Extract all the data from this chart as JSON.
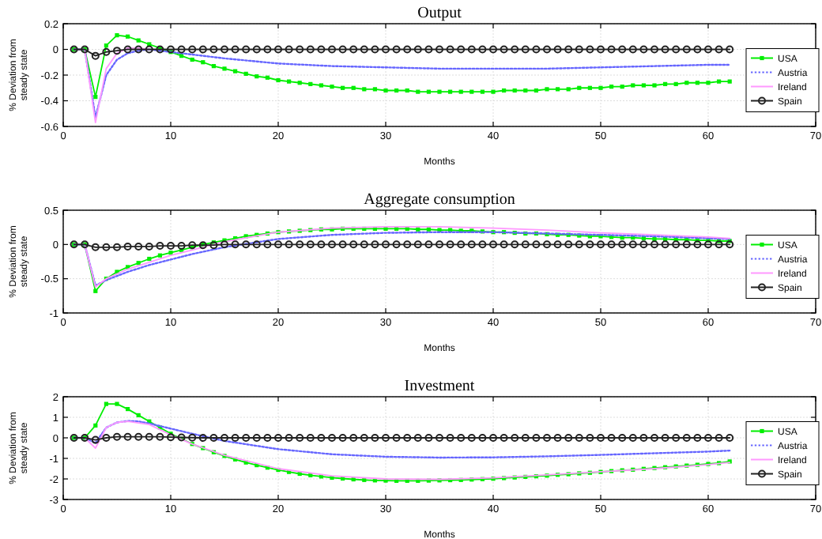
{
  "chart_data": [
    {
      "type": "line",
      "title": "Output",
      "xlabel": "Months",
      "ylabel": "% Deviation from steady state",
      "xlim": [
        0,
        70
      ],
      "xticks": [
        0,
        10,
        20,
        30,
        40,
        50,
        60,
        70
      ],
      "ylim": [
        -0.6,
        0.2
      ],
      "yticks": [
        -0.6,
        -0.4,
        -0.2,
        0,
        0.2
      ],
      "grid": true,
      "legend": "right",
      "series": [
        {
          "name": "USA",
          "color": "#00ee00",
          "marker": "square",
          "line_style": "solid",
          "x": [
            1,
            2,
            3,
            4,
            5,
            6,
            7,
            8,
            9,
            10,
            11,
            12,
            13,
            14,
            15,
            16,
            17,
            18,
            19,
            20,
            21,
            22,
            23,
            24,
            25,
            26,
            27,
            28,
            29,
            30,
            31,
            32,
            33,
            34,
            35,
            36,
            37,
            38,
            39,
            40,
            41,
            42,
            43,
            44,
            45,
            46,
            47,
            48,
            49,
            50,
            51,
            52,
            53,
            54,
            55,
            56,
            57,
            58,
            59,
            60,
            61,
            62
          ],
          "values": [
            0,
            0,
            -0.37,
            0.03,
            0.11,
            0.1,
            0.07,
            0.04,
            0.01,
            -0.02,
            -0.05,
            -0.08,
            -0.1,
            -0.13,
            -0.15,
            -0.17,
            -0.19,
            -0.21,
            -0.22,
            -0.24,
            -0.25,
            -0.26,
            -0.27,
            -0.28,
            -0.29,
            -0.3,
            -0.3,
            -0.31,
            -0.31,
            -0.32,
            -0.32,
            -0.32,
            -0.33,
            -0.33,
            -0.33,
            -0.33,
            -0.33,
            -0.33,
            -0.33,
            -0.33,
            -0.32,
            -0.32,
            -0.32,
            -0.32,
            -0.31,
            -0.31,
            -0.31,
            -0.3,
            -0.3,
            -0.3,
            -0.29,
            -0.29,
            -0.28,
            -0.28,
            -0.28,
            -0.27,
            -0.27,
            -0.26,
            -0.26,
            -0.26,
            -0.25,
            -0.25
          ]
        },
        {
          "name": "Austria",
          "color": "#6666ff",
          "marker": "none",
          "line_style": "dotted",
          "x": [
            1,
            2,
            3,
            4,
            5,
            6,
            7,
            8,
            10,
            15,
            20,
            25,
            30,
            35,
            40,
            45,
            50,
            55,
            60,
            62
          ],
          "values": [
            0,
            0,
            -0.53,
            -0.2,
            -0.08,
            -0.03,
            -0.01,
            0,
            -0.02,
            -0.07,
            -0.11,
            -0.13,
            -0.14,
            -0.15,
            -0.15,
            -0.15,
            -0.14,
            -0.13,
            -0.12,
            -0.12
          ]
        },
        {
          "name": "Ireland",
          "color": "#ff99ff",
          "marker": "none",
          "line_style": "solid",
          "x": [
            1,
            2,
            3,
            4,
            5,
            6,
            7,
            8
          ],
          "values": [
            0,
            0,
            -0.57,
            -0.15,
            -0.03,
            0.01,
            0.01,
            0
          ]
        },
        {
          "name": "Spain",
          "color": "#222222",
          "marker": "circle",
          "line_style": "solid",
          "x": [
            1,
            2,
            3,
            4,
            5,
            6,
            7,
            8,
            9,
            10,
            11,
            12,
            13,
            14,
            15,
            16,
            17,
            18,
            19,
            20,
            21,
            22,
            23,
            24,
            25,
            26,
            27,
            28,
            29,
            30,
            31,
            32,
            33,
            34,
            35,
            36,
            37,
            38,
            39,
            40,
            41,
            42,
            43,
            44,
            45,
            46,
            47,
            48,
            49,
            50,
            51,
            52,
            53,
            54,
            55,
            56,
            57,
            58,
            59,
            60,
            61,
            62
          ],
          "values": [
            0,
            0,
            -0.05,
            -0.02,
            -0.01,
            0,
            0,
            0,
            0,
            0,
            0,
            0,
            0,
            0,
            0,
            0,
            0,
            0,
            0,
            0,
            0,
            0,
            0,
            0,
            0,
            0,
            0,
            0,
            0,
            0,
            0,
            0,
            0,
            0,
            0,
            0,
            0,
            0,
            0,
            0,
            0,
            0,
            0,
            0,
            0,
            0,
            0,
            0,
            0,
            0,
            0,
            0,
            0,
            0,
            0,
            0,
            0,
            0,
            0,
            0,
            0,
            0
          ]
        }
      ]
    },
    {
      "type": "line",
      "title": "Aggregate consumption",
      "xlabel": "Months",
      "ylabel": "% Deviation from steady state",
      "xlim": [
        0,
        70
      ],
      "xticks": [
        0,
        10,
        20,
        30,
        40,
        50,
        60,
        70
      ],
      "ylim": [
        -1,
        0.5
      ],
      "yticks": [
        -1,
        -0.5,
        0,
        0.5
      ],
      "grid": true,
      "legend": "right",
      "series": [
        {
          "name": "USA",
          "color": "#00ee00",
          "marker": "square",
          "line_style": "solid",
          "x": [
            1,
            2,
            3,
            4,
            5,
            6,
            7,
            8,
            9,
            10,
            11,
            12,
            13,
            14,
            15,
            16,
            17,
            18,
            19,
            20,
            21,
            22,
            23,
            24,
            25,
            26,
            27,
            28,
            29,
            30,
            31,
            32,
            33,
            34,
            35,
            36,
            37,
            38,
            39,
            40,
            41,
            42,
            43,
            44,
            45,
            46,
            47,
            48,
            49,
            50,
            51,
            52,
            53,
            54,
            55,
            56,
            57,
            58,
            59,
            60,
            61,
            62
          ],
          "values": [
            0,
            0,
            -0.68,
            -0.5,
            -0.4,
            -0.33,
            -0.27,
            -0.21,
            -0.16,
            -0.12,
            -0.08,
            -0.04,
            0,
            0.03,
            0.06,
            0.09,
            0.12,
            0.14,
            0.16,
            0.18,
            0.19,
            0.2,
            0.21,
            0.22,
            0.22,
            0.23,
            0.23,
            0.23,
            0.23,
            0.23,
            0.23,
            0.23,
            0.22,
            0.22,
            0.21,
            0.21,
            0.2,
            0.2,
            0.19,
            0.18,
            0.18,
            0.17,
            0.16,
            0.16,
            0.15,
            0.14,
            0.14,
            0.13,
            0.12,
            0.12,
            0.11,
            0.1,
            0.1,
            0.09,
            0.08,
            0.08,
            0.07,
            0.07,
            0.06,
            0.06,
            0.05,
            0.05
          ]
        },
        {
          "name": "Austria",
          "color": "#6666ff",
          "marker": "none",
          "line_style": "dotted",
          "x": [
            1,
            2,
            3,
            4,
            6,
            8,
            10,
            12,
            15,
            20,
            25,
            30,
            35,
            40,
            45,
            50,
            55,
            60,
            62
          ],
          "values": [
            0,
            0,
            -0.6,
            -0.52,
            -0.4,
            -0.3,
            -0.22,
            -0.14,
            -0.04,
            0.08,
            0.14,
            0.17,
            0.18,
            0.18,
            0.16,
            0.14,
            0.12,
            0.09,
            0.08
          ]
        },
        {
          "name": "Ireland",
          "color": "#ff99ff",
          "marker": "none",
          "line_style": "solid",
          "x": [
            1,
            2,
            3,
            4,
            6,
            8,
            10,
            12,
            15,
            20,
            25,
            30,
            35,
            40,
            45,
            50,
            55,
            60,
            62
          ],
          "values": [
            0,
            0,
            -0.62,
            -0.5,
            -0.36,
            -0.26,
            -0.16,
            -0.08,
            0.04,
            0.18,
            0.24,
            0.26,
            0.26,
            0.24,
            0.21,
            0.17,
            0.14,
            0.11,
            0.09
          ]
        },
        {
          "name": "Spain",
          "color": "#222222",
          "marker": "circle",
          "line_style": "solid",
          "x": [
            1,
            2,
            3,
            4,
            5,
            6,
            7,
            8,
            9,
            10,
            11,
            12,
            13,
            14,
            15,
            16,
            17,
            18,
            19,
            20,
            21,
            22,
            23,
            24,
            25,
            26,
            27,
            28,
            29,
            30,
            31,
            32,
            33,
            34,
            35,
            36,
            37,
            38,
            39,
            40,
            41,
            42,
            43,
            44,
            45,
            46,
            47,
            48,
            49,
            50,
            51,
            52,
            53,
            54,
            55,
            56,
            57,
            58,
            59,
            60,
            61,
            62
          ],
          "values": [
            0,
            0,
            -0.04,
            -0.04,
            -0.04,
            -0.03,
            -0.03,
            -0.03,
            -0.02,
            -0.02,
            -0.02,
            -0.01,
            -0.01,
            -0.01,
            0,
            0,
            0,
            0,
            0,
            0,
            0,
            0,
            0,
            0,
            0,
            0,
            0,
            0,
            0,
            0,
            0,
            0,
            0,
            0,
            0,
            0,
            0,
            0,
            0,
            0,
            0,
            0,
            0,
            0,
            0,
            0,
            0,
            0,
            0,
            0,
            0,
            0,
            0,
            0,
            0,
            0,
            0,
            0,
            0,
            0,
            0,
            0
          ]
        }
      ]
    },
    {
      "type": "line",
      "title": "Investment",
      "xlabel": "Months",
      "ylabel": "% Deviation from steady state",
      "xlim": [
        0,
        70
      ],
      "xticks": [
        0,
        10,
        20,
        30,
        40,
        50,
        60,
        70
      ],
      "ylim": [
        -3,
        2
      ],
      "yticks": [
        -3,
        -2,
        -1,
        0,
        1,
        2
      ],
      "grid": true,
      "legend": "right",
      "series": [
        {
          "name": "USA",
          "color": "#00ee00",
          "marker": "square",
          "line_style": "solid",
          "x": [
            1,
            2,
            3,
            4,
            5,
            6,
            7,
            8,
            9,
            10,
            11,
            12,
            13,
            14,
            15,
            16,
            17,
            18,
            19,
            20,
            21,
            22,
            23,
            24,
            25,
            26,
            27,
            28,
            29,
            30,
            31,
            32,
            33,
            34,
            35,
            36,
            37,
            38,
            39,
            40,
            41,
            42,
            43,
            44,
            45,
            46,
            47,
            48,
            49,
            50,
            51,
            52,
            53,
            54,
            55,
            56,
            57,
            58,
            59,
            60,
            61,
            62
          ],
          "values": [
            0,
            0,
            0.6,
            1.65,
            1.65,
            1.4,
            1.1,
            0.8,
            0.5,
            0.2,
            -0.05,
            -0.3,
            -0.5,
            -0.7,
            -0.88,
            -1.05,
            -1.2,
            -1.33,
            -1.45,
            -1.56,
            -1.66,
            -1.75,
            -1.82,
            -1.88,
            -1.94,
            -1.98,
            -2.02,
            -2.05,
            -2.07,
            -2.08,
            -2.09,
            -2.09,
            -2.09,
            -2.08,
            -2.07,
            -2.06,
            -2.05,
            -2.03,
            -2.01,
            -1.99,
            -1.96,
            -1.93,
            -1.9,
            -1.87,
            -1.84,
            -1.8,
            -1.77,
            -1.73,
            -1.7,
            -1.66,
            -1.62,
            -1.58,
            -1.55,
            -1.51,
            -1.47,
            -1.43,
            -1.39,
            -1.35,
            -1.31,
            -1.27,
            -1.23,
            -1.15
          ]
        },
        {
          "name": "Austria",
          "color": "#6666ff",
          "marker": "none",
          "line_style": "dotted",
          "x": [
            1,
            2,
            3,
            4,
            5,
            6,
            7,
            8,
            10,
            12,
            15,
            20,
            25,
            30,
            35,
            40,
            45,
            50,
            55,
            60,
            62
          ],
          "values": [
            0,
            0,
            -0.25,
            0.5,
            0.75,
            0.82,
            0.8,
            0.7,
            0.45,
            0.2,
            -0.15,
            -0.55,
            -0.8,
            -0.92,
            -0.96,
            -0.95,
            -0.9,
            -0.83,
            -0.75,
            -0.67,
            -0.62
          ]
        },
        {
          "name": "Ireland",
          "color": "#ff99ff",
          "marker": "none",
          "line_style": "solid",
          "x": [
            1,
            2,
            3,
            4,
            5,
            6,
            8,
            10,
            12,
            15,
            20,
            25,
            30,
            35,
            40,
            45,
            50,
            55,
            60,
            62
          ],
          "values": [
            0,
            0,
            -0.5,
            0.5,
            0.75,
            0.8,
            0.65,
            0.15,
            -0.3,
            -0.85,
            -1.5,
            -1.85,
            -2,
            -2.02,
            -1.95,
            -1.8,
            -1.65,
            -1.5,
            -1.3,
            -1.2
          ]
        },
        {
          "name": "Spain",
          "color": "#222222",
          "marker": "circle",
          "line_style": "solid",
          "x": [
            1,
            2,
            3,
            4,
            5,
            6,
            7,
            8,
            9,
            10,
            11,
            12,
            13,
            14,
            15,
            16,
            17,
            18,
            19,
            20,
            21,
            22,
            23,
            24,
            25,
            26,
            27,
            28,
            29,
            30,
            31,
            32,
            33,
            34,
            35,
            36,
            37,
            38,
            39,
            40,
            41,
            42,
            43,
            44,
            45,
            46,
            47,
            48,
            49,
            50,
            51,
            52,
            53,
            54,
            55,
            56,
            57,
            58,
            59,
            60,
            61,
            62
          ],
          "values": [
            0,
            0,
            -0.1,
            0,
            0.05,
            0.05,
            0.05,
            0.05,
            0.05,
            0.03,
            0.02,
            0.01,
            0,
            0,
            0,
            0,
            0,
            0,
            0,
            0,
            0,
            0,
            0,
            0,
            0,
            0,
            0,
            0,
            0,
            0,
            0,
            0,
            0,
            0,
            0,
            0,
            0,
            0,
            0,
            0,
            0,
            0,
            0,
            0,
            0,
            0,
            0,
            0,
            0,
            0,
            0,
            0,
            0,
            0,
            0,
            0,
            0,
            0,
            0,
            0,
            0,
            0
          ]
        }
      ]
    }
  ]
}
